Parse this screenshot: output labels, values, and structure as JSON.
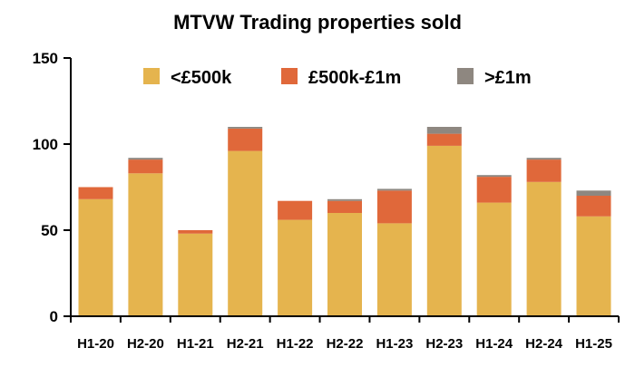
{
  "chart_data": {
    "type": "bar",
    "stacked": true,
    "title": "MTVW Trading properties sold",
    "xlabel": "",
    "ylabel": "",
    "ylim": [
      0,
      150
    ],
    "yticks": [
      0,
      50,
      100,
      150
    ],
    "categories": [
      "H1-20",
      "H2-20",
      "H1-21",
      "H2-21",
      "H1-22",
      "H2-22",
      "H1-23",
      "H2-23",
      "H1-24",
      "H2-24",
      "H1-25"
    ],
    "series": [
      {
        "name": "<£500k",
        "color": "#E5B44E",
        "values": [
          68,
          83,
          48,
          96,
          56,
          60,
          54,
          99,
          66,
          78,
          58
        ]
      },
      {
        "name": "£500k-£1m",
        "color": "#E0683A",
        "values": [
          7,
          8,
          2,
          13,
          11,
          7,
          19,
          7,
          15,
          13,
          12
        ]
      },
      {
        "name": ">£1m",
        "color": "#8E8780",
        "values": [
          0,
          1,
          0,
          1,
          0,
          1,
          1,
          4,
          1,
          1,
          3
        ]
      }
    ],
    "grid": false,
    "legend_position": "top"
  }
}
